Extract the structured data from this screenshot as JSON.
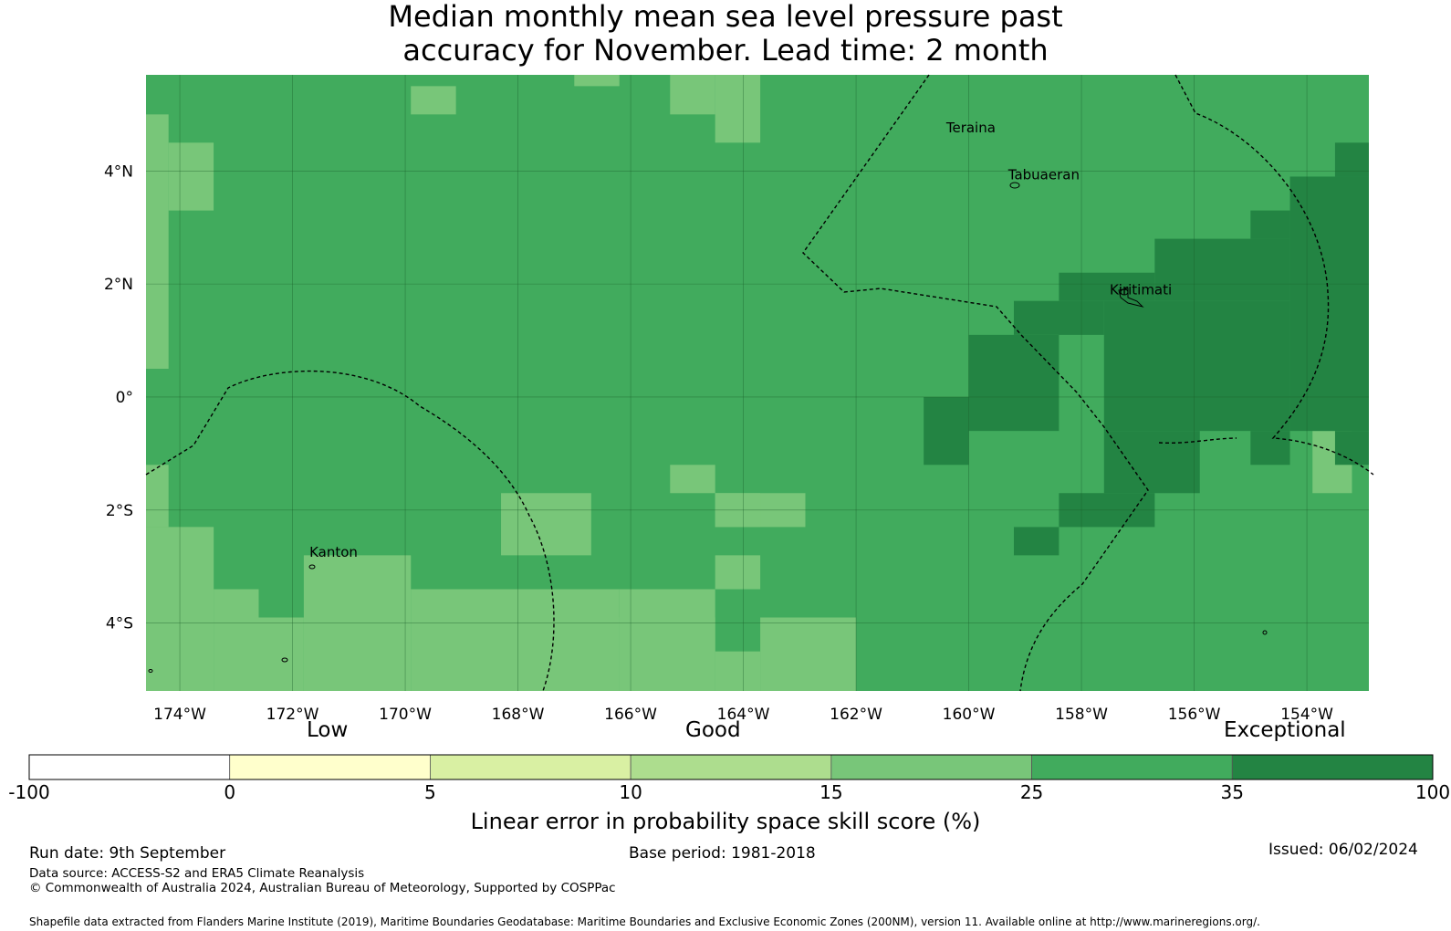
{
  "title": {
    "line1": "Median monthly mean sea level pressure past",
    "line2": "accuracy for November. Lead time: 2 month"
  },
  "map": {
    "lon_range": [
      -174.6,
      -152.9
    ],
    "lat_range": [
      -5.2,
      5.7
    ],
    "lon_ticks": [
      {
        "value": -174,
        "label": "174°W"
      },
      {
        "value": -172,
        "label": "172°W"
      },
      {
        "value": -170,
        "label": "170°W"
      },
      {
        "value": -168,
        "label": "168°W"
      },
      {
        "value": -166,
        "label": "166°W"
      },
      {
        "value": -164,
        "label": "164°W"
      },
      {
        "value": -162,
        "label": "162°W"
      },
      {
        "value": -160,
        "label": "160°W"
      },
      {
        "value": -158,
        "label": "158°W"
      },
      {
        "value": -156,
        "label": "156°W"
      },
      {
        "value": -154,
        "label": "154°W"
      }
    ],
    "lat_ticks": [
      {
        "value": 4,
        "label": "4°N"
      },
      {
        "value": 2,
        "label": "2°N"
      },
      {
        "value": 0,
        "label": "0°"
      },
      {
        "value": -2,
        "label": "2°S"
      },
      {
        "value": -4,
        "label": "4°S"
      }
    ],
    "grid_lines": true,
    "skill_colors": {
      "c15_25": "#78c679",
      "c25_35": "#41ab5d",
      "c35_100": "#238443"
    },
    "grid_cells_note": "cells in degrees, class key refers to skill_colors",
    "places": [
      {
        "name": "Teraina",
        "lon": -160.4,
        "lat": 4.68
      },
      {
        "name": "Tabuaeran",
        "lon": -159.3,
        "lat": 3.85
      },
      {
        "name": "Kiritimati",
        "lon": -157.5,
        "lat": 1.82
      },
      {
        "name": "Kanton",
        "lon": -171.7,
        "lat": -2.83
      }
    ]
  },
  "colorbar": {
    "categories": {
      "low": "Low",
      "good": "Good",
      "exceptional": "Exceptional"
    },
    "bins": [
      {
        "from": "-100",
        "to": "0",
        "color": "#ffffff"
      },
      {
        "from": "0",
        "to": "5",
        "color": "#ffffcc"
      },
      {
        "from": "5",
        "to": "10",
        "color": "#d9f0a3"
      },
      {
        "from": "10",
        "to": "15",
        "color": "#addd8e"
      },
      {
        "from": "15",
        "to": "25",
        "color": "#78c679"
      },
      {
        "from": "25",
        "to": "35",
        "color": "#41ab5d"
      },
      {
        "from": "35",
        "to": "100",
        "color": "#238443"
      }
    ],
    "tick_labels": [
      "-100",
      "0",
      "5",
      "10",
      "15",
      "25",
      "35",
      "100"
    ],
    "title": "Linear error in probability space skill score (%)"
  },
  "footer": {
    "run_date": "Run date: 9th September",
    "base_period": "Base period: 1981-2018",
    "issued": "Issued: 06/02/2024",
    "data_source": "Data source: ACCESS-S2 and ERA5 Climate Reanalysis",
    "copyright": "© Commonwealth of Australia 2024, Australian Bureau of Meteorology, Supported by COSPPac",
    "shapefile": "Shapefile data extracted from Flanders Marine Institute (2019), Maritime Boundaries Geodatabase: Maritime Boundaries and Exclusive Economic Zones (200NM), version 11. Available online at http://www.marineregions.org/."
  }
}
